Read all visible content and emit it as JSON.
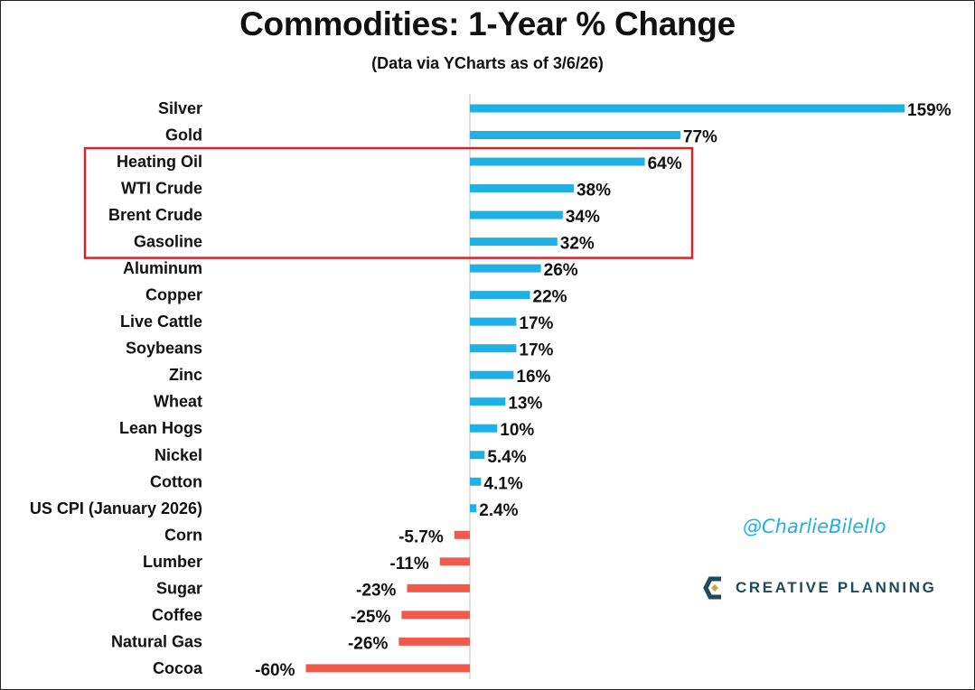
{
  "chart_data": {
    "type": "bar",
    "orientation": "horizontal",
    "title": "Commodities: 1-Year % Change",
    "subtitle": "(Data via YCharts as of 3/6/26)",
    "categories": [
      "Silver",
      "Gold",
      "Heating Oil",
      "WTI Crude",
      "Brent Crude",
      "Gasoline",
      "Aluminum",
      "Copper",
      "Live Cattle",
      "Soybeans",
      "Zinc",
      "Wheat",
      "Lean Hogs",
      "Nickel",
      "Cotton",
      "US CPI (January 2026)",
      "Corn",
      "Lumber",
      "Sugar",
      "Coffee",
      "Natural Gas",
      "Cocoa"
    ],
    "values": [
      159,
      77,
      64,
      38,
      34,
      32,
      26,
      22,
      17,
      17,
      16,
      13,
      10,
      5.4,
      4.1,
      2.4,
      -5.7,
      -11,
      -23,
      -25,
      -26,
      -60
    ],
    "value_labels": [
      "159%",
      "77%",
      "64%",
      "38%",
      "34%",
      "32%",
      "26%",
      "22%",
      "17%",
      "17%",
      "16%",
      "13%",
      "10%",
      "5.4%",
      "4.1%",
      "2.4%",
      "-5.7%",
      "-11%",
      "-23%",
      "-25%",
      "-26%",
      "-60%"
    ],
    "highlighted": [
      "Heating Oil",
      "WTI Crude",
      "Brent Crude",
      "Gasoline"
    ],
    "xlim": [
      -60,
      159
    ],
    "grid": false,
    "legend": "none"
  },
  "colors": {
    "positive": "#1fb0e6",
    "negative": "#f05a4a",
    "highlight_box": "#d9252a",
    "zero_line": "#bfbfbf",
    "text": "#111111"
  },
  "watermark": {
    "handle": "@CharlieBilello",
    "brand": "CREATIVE PLANNING",
    "brand_icon": "creative-planning-logo-icon"
  }
}
